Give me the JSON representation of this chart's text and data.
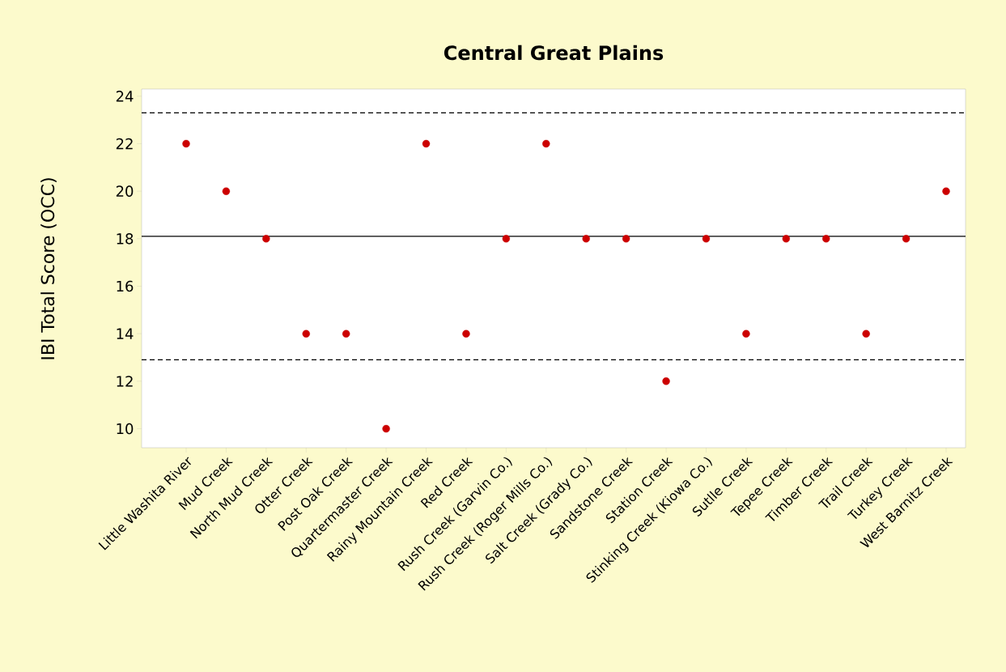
{
  "chart_data": {
    "type": "scatter",
    "title": "Central Great Plains",
    "ylabel": "IBI Total Score (OCC)",
    "categories": [
      "Little Washita River",
      "Mud Creek",
      "North Mud Creek",
      "Otter Creek",
      "Post Oak Creek",
      "Quartermaster Creek",
      "Rainy Mountain Creek",
      "Red Creek",
      "Rush Creek (Garvin Co.)",
      "Rush Creek (Roger Mills Co.)",
      "Salt Creek (Grady Co.)",
      "Sandstone Creek",
      "Station Creek",
      "Stinking Creek (Kiowa Co.)",
      "Sutlle Creek",
      "Tepee Creek",
      "Timber Creek",
      "Trail Creek",
      "Turkey Creek",
      "West Barnitz Creek"
    ],
    "values": [
      22,
      20,
      18,
      14,
      14,
      10,
      22,
      14,
      18,
      22,
      18,
      18,
      12,
      18,
      14,
      18,
      18,
      14,
      18,
      20
    ],
    "color": "#cc0000",
    "marker": "circle",
    "ylim": [
      9.2,
      24.3
    ],
    "yticks": [
      10,
      12,
      14,
      16,
      18,
      20,
      22,
      24
    ],
    "ref_lines": [
      {
        "axis": "y",
        "value": 23.3,
        "color": "#000000",
        "line_style": "dashed"
      },
      {
        "axis": "y",
        "value": 18.1,
        "color": "#000000",
        "line_style": "solid"
      },
      {
        "axis": "y",
        "value": 12.9,
        "color": "#000000",
        "line_style": "dashed"
      }
    ]
  }
}
